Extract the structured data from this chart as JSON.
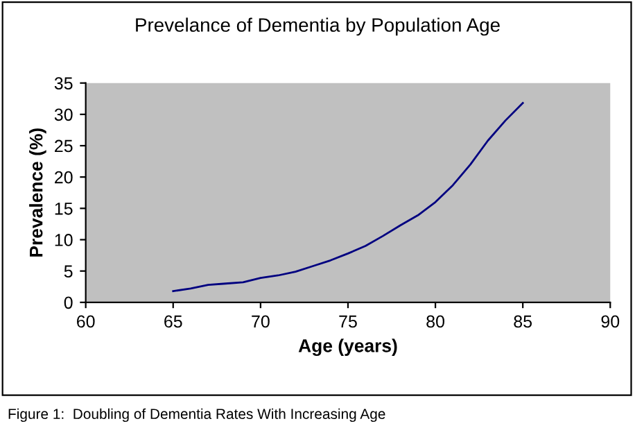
{
  "chart_data": {
    "type": "line",
    "title": "Prevelance of Dementia by Population Age",
    "xlabel": "Age (years)",
    "ylabel": "Prevalence (%)",
    "x": [
      65,
      66,
      67,
      68,
      69,
      70,
      71,
      72,
      73,
      74,
      75,
      76,
      77,
      78,
      79,
      80,
      81,
      82,
      83,
      84,
      85
    ],
    "series": [
      {
        "color": "#000080",
        "values": [
          1.8,
          2.2,
          2.8,
          3.0,
          3.2,
          3.9,
          4.3,
          4.9,
          5.8,
          6.7,
          7.8,
          9.0,
          10.6,
          12.3,
          13.9,
          16.0,
          18.7,
          22.0,
          25.8,
          29.0,
          31.8
        ]
      }
    ],
    "xlim": [
      60,
      90
    ],
    "xticks": [
      60,
      65,
      70,
      75,
      80,
      85,
      90
    ],
    "ylim": [
      0,
      35
    ],
    "yticks": [
      0,
      5,
      10,
      15,
      20,
      25,
      30,
      35
    ],
    "grid": false,
    "legend": false,
    "marker": "none",
    "line_style": "solid",
    "annotations": [
      "Figure 1:  Doubling of Dementia Rates With Increasing Age"
    ]
  }
}
